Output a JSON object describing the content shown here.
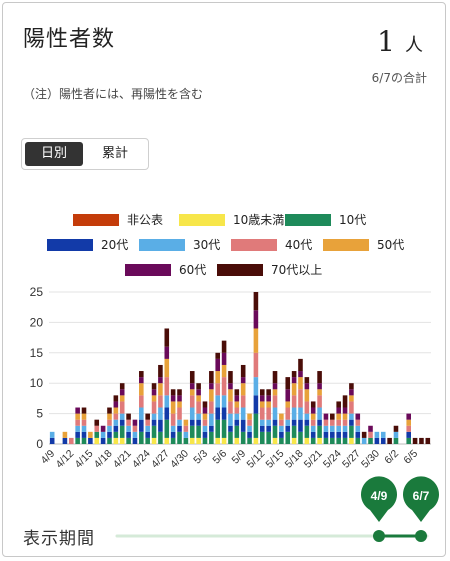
{
  "header": {
    "title": "陽性者数",
    "count": "1",
    "unit": "人",
    "date": "6/7の合計",
    "note": "（注）陽性者には、再陽性を含む"
  },
  "toggle": {
    "daily": "日別",
    "cumulative": "累計"
  },
  "period": {
    "label": "表示期間",
    "start": "4/9",
    "end": "6/7"
  },
  "colors": {
    "accent": "#1a7a3c",
    "grid": "#e3e3e3"
  },
  "chart_data": {
    "type": "bar",
    "stacked": true,
    "ylim": [
      0,
      25
    ],
    "yticks": [
      0,
      5,
      10,
      15,
      20,
      25
    ],
    "grid": true,
    "legend_position": "top",
    "x": [
      "4/9",
      "4/10",
      "4/11",
      "4/12",
      "4/13",
      "4/14",
      "4/15",
      "4/16",
      "4/17",
      "4/18",
      "4/19",
      "4/20",
      "4/21",
      "4/22",
      "4/23",
      "4/24",
      "4/25",
      "4/26",
      "4/27",
      "4/28",
      "4/29",
      "4/30",
      "5/1",
      "5/2",
      "5/3",
      "5/4",
      "5/5",
      "5/6",
      "5/7",
      "5/8",
      "5/9",
      "5/10",
      "5/11",
      "5/12",
      "5/13",
      "5/14",
      "5/15",
      "5/16",
      "5/17",
      "5/18",
      "5/19",
      "5/20",
      "5/21",
      "5/22",
      "5/23",
      "5/24",
      "5/25",
      "5/26",
      "5/27",
      "5/28",
      "5/29",
      "5/30",
      "5/31",
      "6/1",
      "6/2",
      "6/3",
      "6/4",
      "6/5",
      "6/6",
      "6/7"
    ],
    "tick_labels": [
      "4/9",
      "4/12",
      "4/15",
      "4/18",
      "4/21",
      "4/24",
      "4/27",
      "4/30",
      "5/3",
      "5/6",
      "5/9",
      "5/12",
      "5/15",
      "5/18",
      "5/21",
      "5/24",
      "5/27",
      "5/30",
      "6/2",
      "6/5"
    ],
    "totals": [
      2,
      0,
      2,
      1,
      6,
      6,
      2,
      4,
      3,
      6,
      8,
      10,
      5,
      4,
      12,
      5,
      10,
      13,
      19,
      9,
      9,
      4,
      12,
      10,
      7,
      12,
      15,
      17,
      12,
      9,
      13,
      5,
      25,
      9,
      9,
      12,
      5,
      11,
      12,
      14,
      11,
      7,
      12,
      5,
      5,
      7,
      8,
      10,
      5,
      2,
      3,
      2,
      2,
      1,
      3,
      0,
      5,
      1,
      1,
      1
    ],
    "series": [
      {
        "name": "非公表",
        "color": "#c43c0a",
        "values": [
          0,
          0,
          0,
          0,
          0,
          0,
          0,
          0,
          0,
          0,
          0,
          0,
          0,
          0,
          0,
          0,
          0,
          0,
          0,
          0,
          0,
          0,
          0,
          0,
          0,
          0,
          0,
          0,
          0,
          0,
          0,
          0,
          0,
          0,
          0,
          0,
          0,
          0,
          0,
          0,
          0,
          0,
          0,
          0,
          0,
          0,
          0,
          0,
          0,
          0,
          0,
          0,
          0,
          0,
          0,
          0,
          0,
          0,
          0,
          0
        ]
      },
      {
        "name": "10歳未満",
        "color": "#f7e64a",
        "values": [
          0,
          0,
          0,
          0,
          0,
          0,
          0,
          1,
          0,
          0,
          1,
          1,
          0,
          0,
          0,
          0,
          1,
          0,
          1,
          0,
          0,
          0,
          1,
          1,
          0,
          0,
          1,
          1,
          0,
          1,
          0,
          0,
          1,
          0,
          0,
          1,
          0,
          0,
          1,
          0,
          1,
          0,
          1,
          0,
          0,
          0,
          0,
          1,
          0,
          0,
          0,
          0,
          0,
          0,
          0,
          0,
          0,
          0,
          0,
          0
        ]
      },
      {
        "name": "10代",
        "color": "#1e8a5a",
        "values": [
          0,
          0,
          0,
          0,
          1,
          1,
          0,
          1,
          0,
          1,
          1,
          2,
          1,
          0,
          2,
          1,
          2,
          2,
          3,
          1,
          2,
          1,
          2,
          2,
          1,
          2,
          3,
          3,
          2,
          2,
          2,
          1,
          4,
          2,
          2,
          2,
          1,
          2,
          2,
          2,
          2,
          1,
          2,
          1,
          1,
          1,
          1,
          2,
          1,
          0,
          1,
          0,
          0,
          0,
          1,
          0,
          1,
          0,
          0,
          0
        ]
      },
      {
        "name": "20代",
        "color": "#123aa8",
        "values": [
          1,
          0,
          1,
          0,
          1,
          1,
          1,
          0,
          1,
          1,
          1,
          1,
          1,
          1,
          2,
          1,
          1,
          2,
          2,
          1,
          1,
          0,
          1,
          1,
          1,
          1,
          2,
          2,
          1,
          1,
          2,
          1,
          3,
          1,
          1,
          1,
          1,
          1,
          1,
          2,
          1,
          1,
          1,
          1,
          1,
          1,
          1,
          1,
          1,
          0,
          0,
          1,
          1,
          0,
          0,
          0,
          1,
          0,
          0,
          0
        ]
      },
      {
        "name": "30代",
        "color": "#5aaee6",
        "values": [
          1,
          0,
          0,
          0,
          1,
          1,
          0,
          0,
          1,
          1,
          1,
          1,
          1,
          1,
          2,
          1,
          1,
          2,
          2,
          1,
          1,
          1,
          2,
          1,
          1,
          2,
          2,
          2,
          2,
          1,
          2,
          1,
          3,
          1,
          1,
          2,
          1,
          1,
          2,
          2,
          1,
          1,
          2,
          1,
          1,
          1,
          1,
          1,
          1,
          1,
          0,
          1,
          1,
          0,
          1,
          0,
          0,
          0,
          0,
          0
        ]
      },
      {
        "name": "40代",
        "color": "#e07a7a",
        "values": [
          0,
          0,
          0,
          1,
          1,
          1,
          0,
          1,
          0,
          1,
          1,
          2,
          1,
          1,
          2,
          1,
          2,
          2,
          3,
          2,
          2,
          1,
          2,
          2,
          1,
          2,
          2,
          3,
          2,
          1,
          2,
          1,
          4,
          2,
          2,
          2,
          1,
          2,
          2,
          3,
          2,
          1,
          2,
          1,
          1,
          1,
          1,
          2,
          1,
          0,
          1,
          0,
          0,
          0,
          0,
          0,
          1,
          0,
          0,
          0
        ]
      },
      {
        "name": "50代",
        "color": "#e8a23a",
        "values": [
          0,
          0,
          1,
          0,
          1,
          1,
          1,
          0,
          0,
          1,
          1,
          1,
          0,
          0,
          2,
          0,
          1,
          2,
          3,
          2,
          1,
          1,
          1,
          1,
          1,
          2,
          2,
          2,
          2,
          1,
          2,
          1,
          4,
          1,
          1,
          1,
          1,
          1,
          2,
          2,
          2,
          1,
          1,
          0,
          0,
          1,
          1,
          1,
          0,
          0,
          0,
          0,
          0,
          0,
          0,
          0,
          1,
          0,
          0,
          0
        ]
      },
      {
        "name": "60代",
        "color": "#6a0a5a",
        "values": [
          0,
          0,
          0,
          0,
          1,
          0,
          0,
          0,
          1,
          0,
          1,
          1,
          0,
          1,
          1,
          0,
          1,
          1,
          2,
          1,
          1,
          0,
          1,
          1,
          1,
          1,
          2,
          2,
          1,
          1,
          1,
          0,
          3,
          1,
          1,
          1,
          0,
          2,
          1,
          1,
          1,
          1,
          1,
          1,
          0,
          1,
          1,
          1,
          1,
          0,
          1,
          0,
          0,
          0,
          0,
          0,
          1,
          0,
          0,
          0
        ]
      },
      {
        "name": "70代以上",
        "color": "#4a0d08",
        "values": [
          0,
          0,
          0,
          0,
          0,
          1,
          0,
          1,
          0,
          1,
          1,
          1,
          1,
          0,
          1,
          1,
          1,
          2,
          3,
          1,
          1,
          0,
          2,
          1,
          1,
          2,
          1,
          2,
          2,
          1,
          2,
          0,
          3,
          1,
          1,
          2,
          0,
          2,
          1,
          2,
          1,
          1,
          2,
          0,
          1,
          1,
          2,
          1,
          0,
          1,
          0,
          0,
          0,
          1,
          1,
          0,
          0,
          1,
          1,
          1
        ]
      }
    ]
  }
}
